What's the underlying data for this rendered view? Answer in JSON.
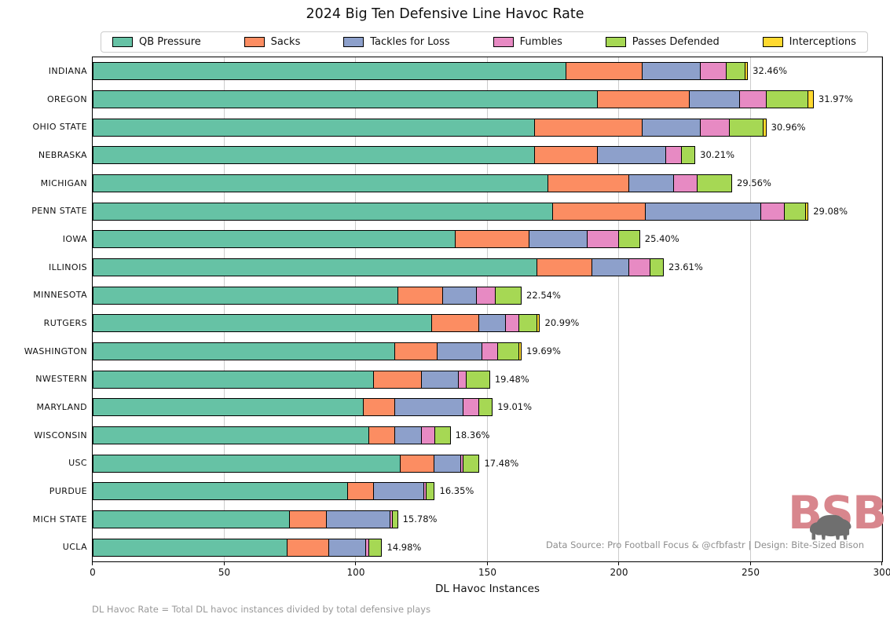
{
  "title": "2024 Big Ten Defensive Line Havoc Rate",
  "footnote": "DL Havoc Rate = Total DL havoc instances divided by total defensive plays",
  "credit": "Data Source: Pro Football Focus & @cfbfastr | Design: Bite-Sized Bison",
  "logo": {
    "text": "BSB",
    "color": "#d8868d",
    "bison_color": "#6f6f6f"
  },
  "xaxis_title": "DL Havoc Instances",
  "chart_data": {
    "type": "bar",
    "orientation": "horizontal",
    "stacked": true,
    "title": "2024 Big Ten Defensive Line Havoc Rate",
    "xlabel": "DL Havoc Instances",
    "xlim": [
      0,
      300
    ],
    "xticks": [
      0,
      50,
      100,
      150,
      200,
      250,
      300
    ],
    "grid": "vertical-light-gray",
    "legend_position": "top",
    "bar_edge_color": "#000000",
    "series": [
      {
        "name": "QB Pressure",
        "color": "#66c2a5"
      },
      {
        "name": "Sacks",
        "color": "#fc8d62"
      },
      {
        "name": "Tackles for Loss",
        "color": "#8da0cb"
      },
      {
        "name": "Fumbles",
        "color": "#e78ac3"
      },
      {
        "name": "Passes Defended",
        "color": "#a6d854"
      },
      {
        "name": "Interceptions",
        "color": "#ffd92f"
      }
    ],
    "teams": [
      {
        "name": "INDIANA",
        "rate_label": "32.46%",
        "values": [
          180,
          29,
          22,
          10,
          7,
          1
        ],
        "total": 249
      },
      {
        "name": "OREGON",
        "rate_label": "31.97%",
        "values": [
          192,
          35,
          19,
          10,
          16,
          2
        ],
        "total": 274
      },
      {
        "name": "OHIO STATE",
        "rate_label": "30.96%",
        "values": [
          168,
          41,
          22,
          11,
          13,
          1
        ],
        "total": 256
      },
      {
        "name": "NEBRASKA",
        "rate_label": "30.21%",
        "values": [
          168,
          24,
          26,
          6,
          5,
          0
        ],
        "total": 229
      },
      {
        "name": "MICHIGAN",
        "rate_label": "29.56%",
        "values": [
          173,
          31,
          17,
          9,
          13,
          0
        ],
        "total": 243
      },
      {
        "name": "PENN STATE",
        "rate_label": "29.08%",
        "values": [
          175,
          35,
          44,
          9,
          8,
          1
        ],
        "total": 272
      },
      {
        "name": "IOWA",
        "rate_label": "25.40%",
        "values": [
          138,
          28,
          22,
          12,
          8,
          0
        ],
        "total": 208
      },
      {
        "name": "ILLINOIS",
        "rate_label": "23.61%",
        "values": [
          169,
          21,
          14,
          8,
          5,
          0
        ],
        "total": 217
      },
      {
        "name": "MINNESOTA",
        "rate_label": "22.54%",
        "values": [
          116,
          17,
          13,
          7,
          10,
          0
        ],
        "total": 163
      },
      {
        "name": "RUTGERS",
        "rate_label": "20.99%",
        "values": [
          129,
          18,
          10,
          5,
          7,
          1
        ],
        "total": 170
      },
      {
        "name": "WASHINGTON",
        "rate_label": "19.69%",
        "values": [
          115,
          16,
          17,
          6,
          8,
          1
        ],
        "total": 163
      },
      {
        "name": "NWESTERN",
        "rate_label": "19.48%",
        "values": [
          107,
          18,
          14,
          3,
          9,
          0
        ],
        "total": 151
      },
      {
        "name": "MARYLAND",
        "rate_label": "19.01%",
        "values": [
          103,
          12,
          26,
          6,
          5,
          0
        ],
        "total": 152
      },
      {
        "name": "WISCONSIN",
        "rate_label": "18.36%",
        "values": [
          105,
          10,
          10,
          5,
          6,
          0
        ],
        "total": 136
      },
      {
        "name": "USC",
        "rate_label": "17.48%",
        "values": [
          117,
          13,
          10,
          1,
          6,
          0
        ],
        "total": 147
      },
      {
        "name": "PURDUE",
        "rate_label": "16.35%",
        "values": [
          97,
          10,
          19,
          1,
          3,
          0
        ],
        "total": 130
      },
      {
        "name": "MICH STATE",
        "rate_label": "15.78%",
        "values": [
          75,
          14,
          24,
          1,
          2,
          0
        ],
        "total": 116
      },
      {
        "name": "UCLA",
        "rate_label": "14.98%",
        "values": [
          74,
          16,
          14,
          1,
          5,
          0
        ],
        "total": 110
      }
    ]
  }
}
